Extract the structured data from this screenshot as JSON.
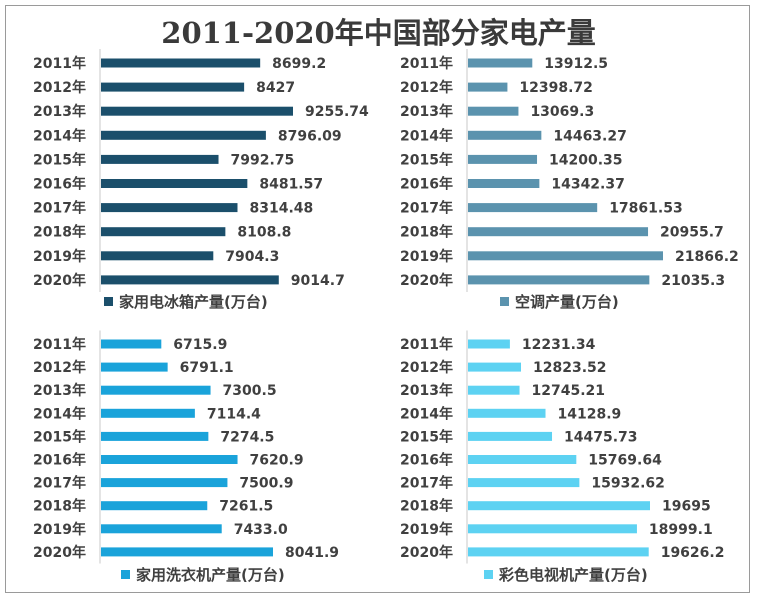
{
  "title": "2011-2020年中国部分家电产量",
  "chart_data": [
    {
      "type": "bar",
      "orientation": "horizontal",
      "series_name": "家用电冰箱产量(万台)",
      "color": "#1B4F6B",
      "categories": [
        "2011年",
        "2012年",
        "2013年",
        "2014年",
        "2015年",
        "2016年",
        "2017年",
        "2018年",
        "2019年",
        "2020年"
      ],
      "values": [
        8699.2,
        8427,
        9255.74,
        8796.09,
        7992.75,
        8481.57,
        8314.48,
        8108.8,
        7904.3,
        9014.7
      ],
      "labels": [
        "8699.2",
        "8427",
        "9255.74",
        "8796.09",
        "7992.75",
        "8481.57",
        "8314.48",
        "8108.8",
        "7904.3",
        "9014.7"
      ],
      "xlim": [
        6000,
        10000
      ]
    },
    {
      "type": "bar",
      "orientation": "horizontal",
      "series_name": "空调产量(万台)",
      "color": "#5B93AE",
      "categories": [
        "2011年",
        "2012年",
        "2013年",
        "2014年",
        "2015年",
        "2016年",
        "2017年",
        "2018年",
        "2019年",
        "2020年"
      ],
      "values": [
        13912.5,
        12398.72,
        13069.3,
        14463.27,
        14200.35,
        14342.37,
        17861.53,
        20955.7,
        21866.2,
        21035.3
      ],
      "labels": [
        "13912.5",
        "12398.72",
        "13069.3",
        "14463.27",
        "14200.35",
        "14342.37",
        "17861.53",
        "20955.7",
        "21866.2",
        "21035.3"
      ],
      "xlim": [
        10000,
        22500
      ]
    },
    {
      "type": "bar",
      "orientation": "horizontal",
      "series_name": "家用洗衣机产量(万台)",
      "color": "#1AA3DA",
      "categories": [
        "2011年",
        "2012年",
        "2013年",
        "2014年",
        "2015年",
        "2016年",
        "2017年",
        "2018年",
        "2019年",
        "2020年"
      ],
      "values": [
        6715.9,
        6791.1,
        7300.5,
        7114.4,
        7274.5,
        7620.9,
        7500.9,
        7261.5,
        7433.0,
        8041.9
      ],
      "labels": [
        "6715.9",
        "6791.1",
        "7300.5",
        "7114.4",
        "7274.5",
        "7620.9",
        "7500.9",
        "7261.5",
        "7433.0",
        "8041.9"
      ],
      "xlim": [
        6000,
        8300
      ]
    },
    {
      "type": "bar",
      "orientation": "horizontal",
      "series_name": "彩色电视机产量(万台)",
      "color": "#5DD2F2",
      "categories": [
        "2011年",
        "2012年",
        "2013年",
        "2014年",
        "2015年",
        "2016年",
        "2017年",
        "2018年",
        "2019年",
        "2020年"
      ],
      "values": [
        12231.34,
        12823.52,
        12745.21,
        14128.9,
        14475.73,
        15769.64,
        15932.62,
        19695,
        18999.1,
        19626.2
      ],
      "labels": [
        "12231.34",
        "12823.52",
        "12745.21",
        "14128.9",
        "14475.73",
        "15769.64",
        "15932.62",
        "19695",
        "18999.1",
        "19626.2"
      ],
      "xlim": [
        10000,
        20500
      ]
    }
  ]
}
